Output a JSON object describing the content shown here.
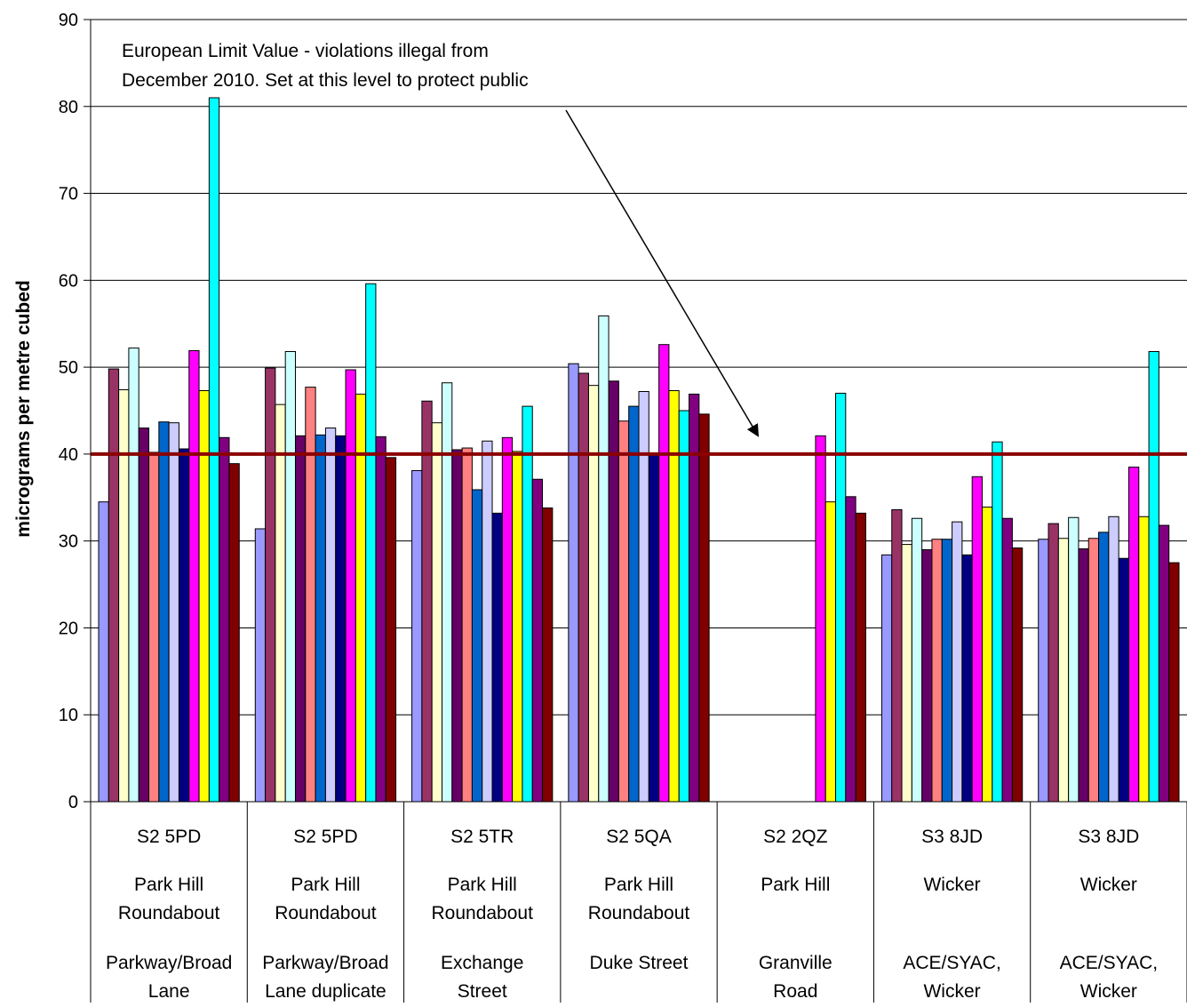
{
  "chart_data": {
    "type": "bar",
    "ylabel": "micrograms per metre cubed",
    "ylim": [
      0,
      90
    ],
    "yticks": [
      0,
      10,
      20,
      30,
      40,
      50,
      60,
      70,
      80,
      90
    ],
    "grid": true,
    "legend": "none",
    "categories": [
      {
        "lines": [
          "S2 5PD",
          "Park Hill Roundabout",
          "Parkway/Broad Lane"
        ]
      },
      {
        "lines": [
          "S2 5PD",
          "Park Hill Roundabout",
          "Parkway/Broad Lane duplicate"
        ]
      },
      {
        "lines": [
          "S2 5TR",
          "Park Hill Roundabout",
          "Exchange Street"
        ]
      },
      {
        "lines": [
          "S2 5QA",
          "Park Hill Roundabout",
          "Duke Street"
        ]
      },
      {
        "lines": [
          "S2 2QZ",
          "Park Hill",
          "Granville Road"
        ]
      },
      {
        "lines": [
          "S3 8JD",
          "Wicker",
          "ACE/SYAC, Wicker"
        ]
      },
      {
        "lines": [
          "S3 8JD",
          "Wicker",
          "ACE/SYAC, Wicker"
        ]
      }
    ],
    "category_rows": [
      [
        "S2 5PD",
        "S2 5PD",
        "S2 5TR",
        "S2 5QA",
        "S2 2QZ",
        "S3 8JD",
        "S3 8JD"
      ],
      [
        [
          "Park Hill",
          "Roundabout"
        ],
        [
          "Park Hill",
          "Roundabout"
        ],
        [
          "Park Hill",
          "Roundabout"
        ],
        [
          "Park Hill",
          "Roundabout"
        ],
        [
          "Park Hill"
        ],
        [
          "Wicker"
        ],
        [
          "Wicker"
        ]
      ],
      [
        [
          "Parkway/Broad",
          "Lane"
        ],
        [
          "Parkway/Broad",
          "Lane duplicate"
        ],
        [
          "Exchange",
          "Street"
        ],
        [
          "Duke Street"
        ],
        [
          "Granville",
          "Road"
        ],
        [
          "ACE/SYAC,",
          "Wicker"
        ],
        [
          "ACE/SYAC,",
          "Wicker"
        ]
      ]
    ],
    "series_colors": [
      "#9999ff",
      "#993366",
      "#ffffcc",
      "#ccffff",
      "#660066",
      "#ff8080",
      "#0066cc",
      "#ccccff",
      "#000080",
      "#ff00ff",
      "#ffff00",
      "#00ffff",
      "#800080",
      "#800000"
    ],
    "values": [
      [
        34.5,
        49.8,
        47.4,
        52.2,
        43.0,
        40.2,
        43.7,
        43.6,
        40.6,
        51.9,
        47.3,
        81.0,
        41.9,
        38.9
      ],
      [
        31.4,
        49.9,
        45.7,
        51.8,
        42.1,
        47.7,
        42.2,
        43.0,
        42.1,
        49.7,
        46.9,
        59.6,
        42.0,
        39.6
      ],
      [
        38.1,
        46.1,
        43.6,
        48.2,
        40.5,
        40.7,
        35.9,
        41.5,
        33.2,
        41.9,
        40.3,
        45.5,
        37.1,
        33.8
      ],
      [
        50.4,
        49.3,
        47.9,
        55.9,
        48.4,
        43.8,
        45.5,
        47.2,
        39.9,
        52.6,
        47.3,
        45.0,
        46.9,
        44.6
      ],
      [
        null,
        null,
        null,
        null,
        null,
        null,
        null,
        null,
        null,
        42.1,
        34.5,
        47.0,
        35.1,
        33.2
      ],
      [
        28.4,
        33.6,
        29.6,
        32.6,
        29.0,
        30.2,
        30.2,
        32.2,
        28.4,
        37.4,
        33.9,
        41.4,
        32.6,
        29.2
      ],
      [
        30.2,
        32.0,
        30.3,
        32.7,
        29.1,
        30.3,
        31.0,
        32.8,
        28.0,
        38.5,
        32.8,
        51.8,
        31.8,
        27.5
      ]
    ],
    "limit_line": {
      "value": 40,
      "color": "#8b0000"
    },
    "annotation": {
      "lines": [
        "European Limit Value - violations illegal from",
        "December 2010. Set at this level to protect public"
      ]
    }
  }
}
